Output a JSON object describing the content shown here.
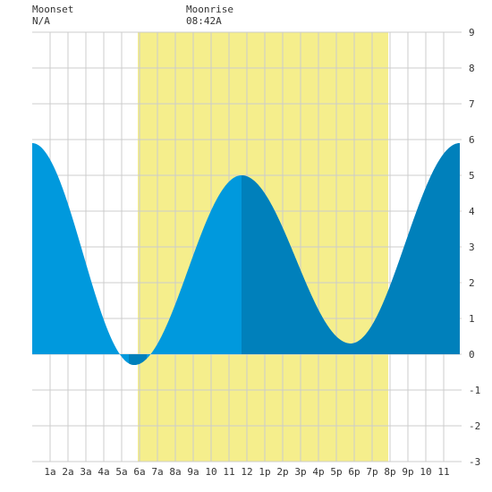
{
  "header": {
    "moonset_label": "Moonset",
    "moonset_value": "N/A",
    "moonrise_label": "Moonrise",
    "moonrise_value": "08:42A"
  },
  "colors": {
    "daylight": "#f5ee8c",
    "tide_light": "#0099dd",
    "tide_dark": "#0080bb",
    "grid": "#cccccc",
    "background": "#ffffff"
  },
  "chart_data": {
    "type": "area",
    "xlim": [
      0,
      24
    ],
    "ylim": [
      -3,
      9
    ],
    "y_ticks": [
      -3,
      -2,
      -1,
      0,
      1,
      2,
      3,
      4,
      5,
      6,
      7,
      8,
      9
    ],
    "x_tick_labels": [
      "1a",
      "2a",
      "3a",
      "4a",
      "5a",
      "6a",
      "7a",
      "8a",
      "9a",
      "10",
      "11",
      "12",
      "1p",
      "2p",
      "3p",
      "4p",
      "5p",
      "6p",
      "7p",
      "8p",
      "9p",
      "10",
      "11"
    ],
    "daylight": [
      5.9,
      19.9
    ],
    "tide_extrema": [
      {
        "hour": 0.0,
        "height": 5.9,
        "type": "high"
      },
      {
        "hour": 5.7,
        "height": -0.3,
        "type": "low"
      },
      {
        "hour": 11.7,
        "height": 5.0,
        "type": "high"
      },
      {
        "hour": 17.8,
        "height": 0.3,
        "type": "low"
      },
      {
        "hour": 23.9,
        "height": 5.9,
        "type": "high"
      }
    ],
    "dark_segments": [
      [
        5.4,
        6.4
      ],
      [
        11.7,
        17.7
      ]
    ],
    "dark_tail_start": 17.7
  }
}
